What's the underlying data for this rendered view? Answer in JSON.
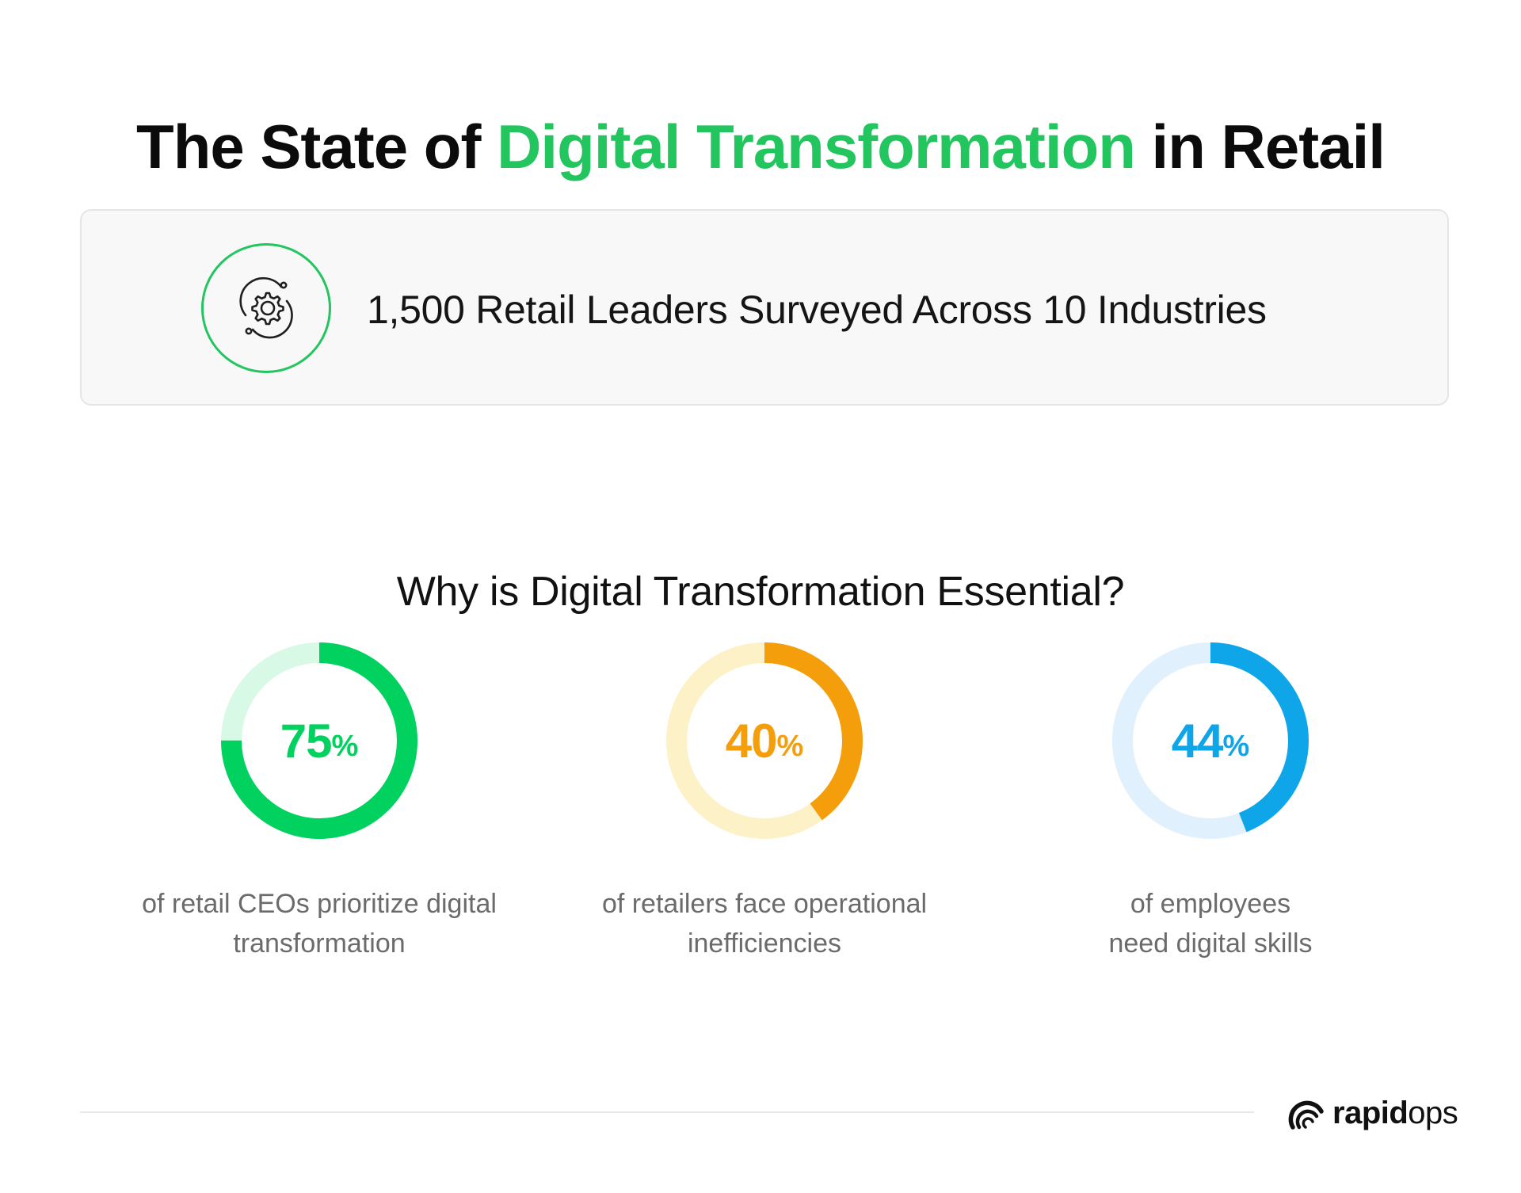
{
  "header": {
    "title_part1": "The State of ",
    "title_highlight": "Digital Transformation",
    "title_part2": " in Retail",
    "highlight_color": "#22c55e"
  },
  "survey": {
    "icon": "gear-cycle-icon",
    "text": "1,500 Retail Leaders Surveyed Across 10 Industries"
  },
  "section": {
    "subtitle": "Why is Digital Transformation Essential?"
  },
  "chart_data": [
    {
      "type": "pie",
      "value": 75,
      "value_label": "75",
      "unit": "%",
      "caption_lines": [
        "of retail CEOs prioritize digital",
        "transformation"
      ],
      "color": "#00d15f",
      "track_color": "#d8f9e6"
    },
    {
      "type": "pie",
      "value": 40,
      "value_label": "40",
      "unit": "%",
      "caption_lines": [
        "of retailers face operational",
        "inefficiencies"
      ],
      "color": "#f59e0b",
      "track_color": "#fdf1c8"
    },
    {
      "type": "pie",
      "value": 44,
      "value_label": "44",
      "unit": "%",
      "caption_lines": [
        "of employees",
        "need digital skills"
      ],
      "color": "#0ea5e9",
      "track_color": "#e0f1fd"
    }
  ],
  "footer": {
    "logo_icon": "rapidops-logo-icon",
    "brand_bold": "rapid",
    "brand_light": "ops"
  }
}
